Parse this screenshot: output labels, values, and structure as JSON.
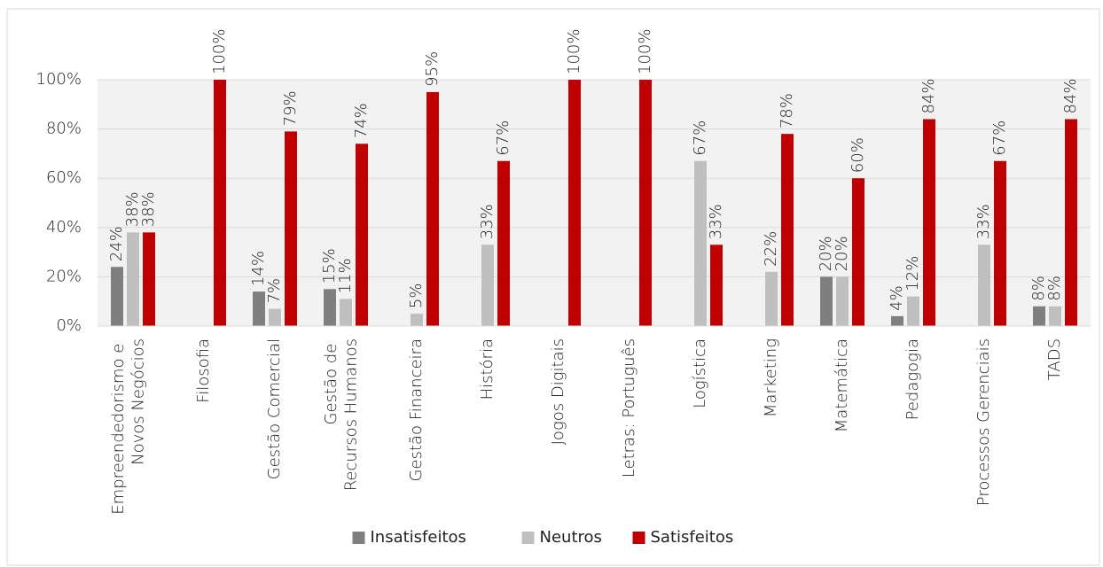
{
  "chart_data": {
    "type": "bar",
    "categories": [
      "Empreendedorismo e Novos Negócios",
      "Filosofia",
      "Gestão Comercial",
      "Gestão de Recursos Humanos",
      "Gestão Financeira",
      "História",
      "Jogos Digitais",
      "Letras: Português",
      "Logística",
      "Marketing",
      "Matemática",
      "Pedagogia",
      "Processos Gerenciais",
      "TADS"
    ],
    "series": [
      {
        "name": "Insatisfeitos",
        "color": "#7f7f7f",
        "values": [
          24,
          null,
          14,
          15,
          null,
          null,
          null,
          null,
          null,
          null,
          20,
          4,
          null,
          8
        ],
        "value_labels": [
          "24%",
          null,
          "14%",
          "15%",
          null,
          null,
          null,
          null,
          null,
          null,
          "20%",
          "4%",
          null,
          "8%"
        ]
      },
      {
        "name": "Neutros",
        "color": "#bfbfbf",
        "values": [
          38,
          null,
          7,
          11,
          5,
          33,
          null,
          null,
          67,
          22,
          20,
          12,
          33,
          8
        ],
        "value_labels": [
          "38%",
          null,
          "7%",
          "11%",
          "5%",
          "33%",
          null,
          null,
          "67%",
          "22%",
          "20%",
          "12%",
          "33%",
          "8%"
        ]
      },
      {
        "name": "Satisfeitos",
        "color": "#c00000",
        "values": [
          38,
          100,
          79,
          74,
          95,
          67,
          100,
          100,
          33,
          78,
          60,
          84,
          67,
          84
        ],
        "value_labels": [
          "38%",
          "100%",
          "79%",
          "74%",
          "95%",
          "67%",
          "100%",
          "100%",
          "33%",
          "78%",
          "60%",
          "84%",
          "67%",
          "84%"
        ]
      }
    ],
    "ylim": [
      0,
      100
    ],
    "yticks": [
      {
        "value": 0,
        "label": "0%"
      },
      {
        "value": 20,
        "label": "20%"
      },
      {
        "value": 40,
        "label": "40%"
      },
      {
        "value": 60,
        "label": "60%"
      },
      {
        "value": 80,
        "label": "80%"
      },
      {
        "value": 100,
        "label": "100%"
      }
    ],
    "grid": true,
    "legend": "bottom"
  }
}
